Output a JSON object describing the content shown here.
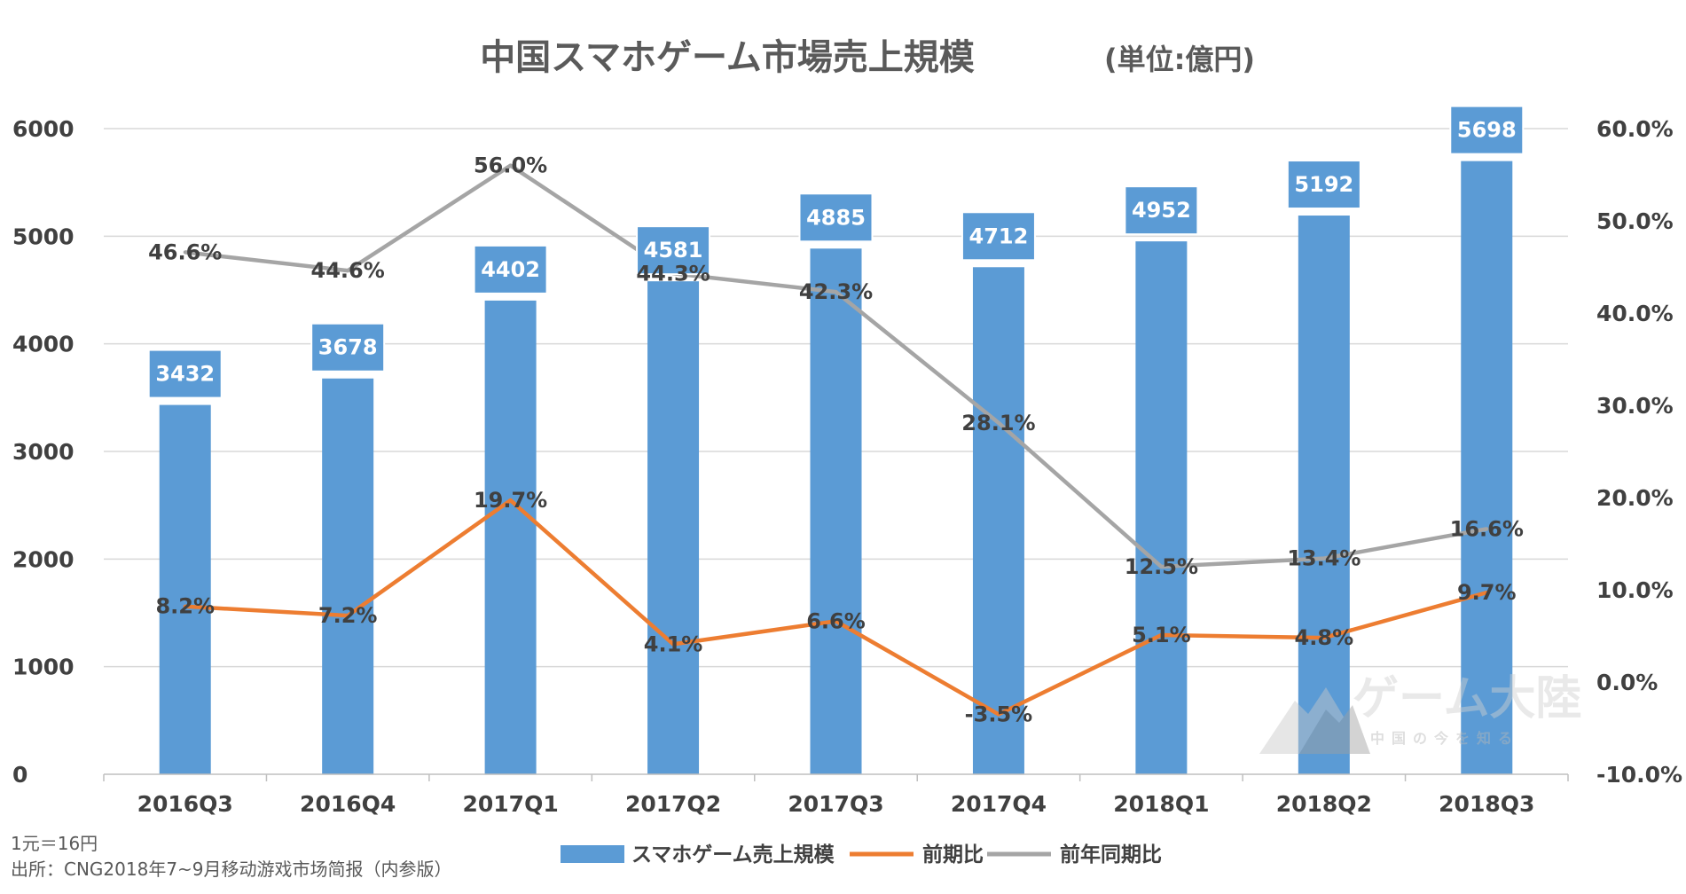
{
  "chart_data": {
    "type": "bar",
    "title": "中国スマホゲーム市場売上規模",
    "unit_label": "(単位:億円)",
    "categories": [
      "2016Q3",
      "2016Q4",
      "2017Q1",
      "2017Q2",
      "2017Q3",
      "2017Q4",
      "2018Q1",
      "2018Q2",
      "2018Q3"
    ],
    "ylim": [
      0,
      6000
    ],
    "yticks": [
      "0",
      "1000",
      "2000",
      "3000",
      "4000",
      "5000",
      "6000"
    ],
    "y2lim": [
      -10,
      60
    ],
    "y2ticks": [
      "-10.0%",
      "0.0%",
      "10.0%",
      "20.0%",
      "30.0%",
      "40.0%",
      "50.0%",
      "60.0%"
    ],
    "grid": true,
    "legend_position": "bottom",
    "series": [
      {
        "name": "スマホゲーム売上規模",
        "type": "bar",
        "axis": "left",
        "color": "#5b9bd5",
        "values": [
          3432,
          3678,
          4402,
          4581,
          4885,
          4712,
          4952,
          5192,
          5698
        ],
        "labels": [
          "3432",
          "3678",
          "4402",
          "4581",
          "4885",
          "4712",
          "4952",
          "5192",
          "5698"
        ]
      },
      {
        "name": "前期比",
        "type": "line",
        "axis": "right",
        "color": "#ed7d31",
        "values": [
          8.2,
          7.2,
          19.7,
          4.1,
          6.6,
          -3.5,
          5.1,
          4.8,
          9.7
        ],
        "labels": [
          "8.2%",
          "7.2%",
          "19.7%",
          "4.1%",
          "6.6%",
          "-3.5%",
          "5.1%",
          "4.8%",
          "9.7%"
        ]
      },
      {
        "name": "前年同期比",
        "type": "line",
        "axis": "right",
        "color": "#a5a5a5",
        "values": [
          46.6,
          44.6,
          56.0,
          44.3,
          42.3,
          28.1,
          12.5,
          13.4,
          16.6
        ],
        "labels": [
          "46.6%",
          "44.6%",
          "56.0%",
          "44.3%",
          "42.3%",
          "28.1%",
          "12.5%",
          "13.4%",
          "16.6%"
        ]
      }
    ]
  },
  "notes": {
    "rate": "1元＝16円",
    "source": "出所：CNG2018年7~9月移动游戏市场简报（内参版）"
  },
  "watermark": {
    "name": "ゲーム大陸",
    "tagline": "中国の今を知る"
  }
}
